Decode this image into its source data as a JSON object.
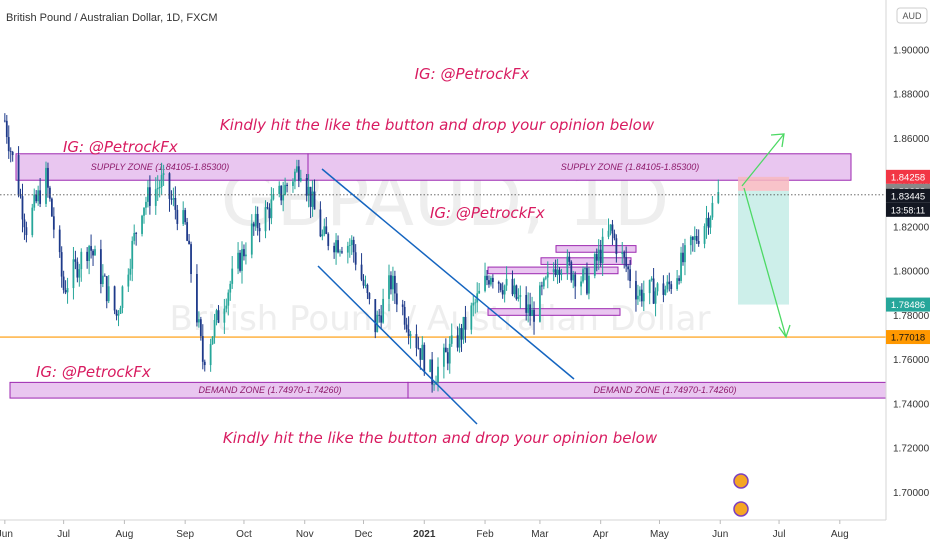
{
  "header": {
    "title": "British Pound / Australian Dollar, 1D, FXCM"
  },
  "currency_badge": "AUD",
  "watermark": {
    "symbol": "GBPAUD, 1D",
    "name": "British Pound / Australian Dollar"
  },
  "annotations": {
    "ig_top": "IG: @PetrockFx",
    "like_top": "Kindly hit the like the button and drop your opinion below",
    "ig_left_top": "IG: @PetrockFx",
    "ig_mid": "IG: @PetrockFx",
    "ig_left_bottom": "IG: @PetrockFx",
    "like_bottom": "Kindly hit the like the button and drop your opinion below"
  },
  "zones": {
    "supply_left": "SUPPLY ZONE (1.84105-1.85300)",
    "supply_right": "SUPPLY ZONE (1.84105-1.85300)",
    "demand_left": "DEMAND ZONE (1.74970-1.74260)",
    "demand_right": "DEMAND ZONE (1.74970-1.74260)"
  },
  "price_labels": {
    "stop": "1.84258",
    "entry": "1.83622",
    "current": "1.83445",
    "countdown": "13:58:11",
    "target": "1.78486",
    "hline": "1.77018"
  },
  "colors": {
    "up": "#26a69a",
    "down": "#1e3a8a",
    "zone_fill": "#e9c6f0",
    "zone_border": "#9c27b0",
    "annotation": "#d81b60",
    "hline": "#ff9800",
    "channel": "#1565c0",
    "arrow": "#4cd964",
    "stop_fill": "#f7b8bf",
    "target_fill": "#c4ece6"
  },
  "chart_data": {
    "type": "candlestick",
    "title": "British Pound / Australian Dollar, 1D, FXCM",
    "xlabel": "",
    "ylabel": "",
    "y_ticks": [
      1.7,
      1.72,
      1.74,
      1.76,
      1.78,
      1.8,
      1.82,
      1.84,
      1.86,
      1.88,
      1.9
    ],
    "x_ticks": [
      "Jun",
      "Jul",
      "Aug",
      "Sep",
      "Oct",
      "Nov",
      "Dec",
      "2021",
      "Feb",
      "Mar",
      "Apr",
      "May",
      "Jun",
      "Jul",
      "Aug"
    ],
    "ylim": [
      1.6875,
      1.9225
    ],
    "grid": false,
    "close_anchors": [
      {
        "date": "2020-06-01",
        "close": 1.868
      },
      {
        "date": "2020-06-12",
        "close": 1.82
      },
      {
        "date": "2020-06-22",
        "close": 1.842
      },
      {
        "date": "2020-07-01",
        "close": 1.792
      },
      {
        "date": "2020-07-14",
        "close": 1.812
      },
      {
        "date": "2020-07-28",
        "close": 1.78
      },
      {
        "date": "2020-08-10",
        "close": 1.83
      },
      {
        "date": "2020-08-20",
        "close": 1.84
      },
      {
        "date": "2020-09-01",
        "close": 1.82
      },
      {
        "date": "2020-09-10",
        "close": 1.76
      },
      {
        "date": "2020-09-22",
        "close": 1.79
      },
      {
        "date": "2020-10-05",
        "close": 1.818
      },
      {
        "date": "2020-10-20",
        "close": 1.835
      },
      {
        "date": "2020-10-30",
        "close": 1.848
      },
      {
        "date": "2020-11-10",
        "close": 1.815
      },
      {
        "date": "2020-11-25",
        "close": 1.812
      },
      {
        "date": "2020-12-07",
        "close": 1.775
      },
      {
        "date": "2020-12-15",
        "close": 1.795
      },
      {
        "date": "2021-01-05",
        "close": 1.752
      },
      {
        "date": "2021-01-20",
        "close": 1.772
      },
      {
        "date": "2021-02-04",
        "close": 1.8
      },
      {
        "date": "2021-02-25",
        "close": 1.78
      },
      {
        "date": "2021-03-10",
        "close": 1.805
      },
      {
        "date": "2021-03-25",
        "close": 1.795
      },
      {
        "date": "2021-04-06",
        "close": 1.818
      },
      {
        "date": "2021-04-20",
        "close": 1.79
      },
      {
        "date": "2021-05-05",
        "close": 1.792
      },
      {
        "date": "2021-05-18",
        "close": 1.812
      },
      {
        "date": "2021-05-31",
        "close": 1.834
      }
    ],
    "zones": [
      {
        "label": "SUPPLY ZONE (1.84105-1.85300)",
        "low": 1.84105,
        "high": 1.853
      },
      {
        "label": "DEMAND ZONE (1.74970-1.74260)",
        "low": 1.7426,
        "high": 1.7497
      }
    ],
    "horizontal_line": 1.77018,
    "position": {
      "entry": 1.83622,
      "stop": 1.84258,
      "target": 1.78486
    },
    "last_price": 1.83445
  }
}
